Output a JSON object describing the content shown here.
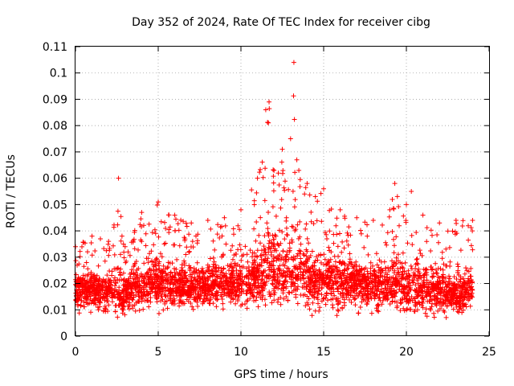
{
  "chart_data": {
    "type": "scatter",
    "title": "Day 352 of 2024, Rate Of TEC Index for receiver cibg",
    "xlabel": "GPS time / hours",
    "ylabel": "ROTI / TECUs",
    "xlim": [
      0,
      25
    ],
    "ylim": [
      0,
      0.11
    ],
    "xticks": [
      "0",
      "5",
      "10",
      "15",
      "20",
      "25"
    ],
    "yticks": [
      "0",
      "0.01",
      "0.02",
      "0.03",
      "0.04",
      "0.05",
      "0.06",
      "0.07",
      "0.08",
      "0.09",
      "0.1",
      "0.11"
    ],
    "grid": true,
    "marker": "+",
    "color": "#ff0000",
    "series": [
      {
        "x": [
          0.0,
          1.0,
          2.0,
          2.6,
          2.9,
          3.0,
          4.0,
          5.0,
          6.0,
          7.0,
          8.0,
          9.0,
          10.0,
          11.0,
          11.5,
          11.7,
          12.0,
          12.5,
          13.0,
          13.2,
          13.5,
          14.0,
          14.5,
          15.0,
          16.0,
          17.0,
          18.0,
          19.0,
          19.3,
          20.0,
          20.3,
          21.0,
          22.0,
          23.0,
          24.0
        ],
        "y_median": [
          0.018,
          0.018,
          0.017,
          0.016,
          0.012,
          0.018,
          0.019,
          0.02,
          0.019,
          0.018,
          0.019,
          0.02,
          0.021,
          0.021,
          0.025,
          0.028,
          0.024,
          0.023,
          0.025,
          0.026,
          0.023,
          0.022,
          0.021,
          0.022,
          0.021,
          0.02,
          0.019,
          0.02,
          0.019,
          0.018,
          0.018,
          0.018,
          0.017,
          0.016,
          0.017
        ],
        "y_min": [
          0.008,
          0.008,
          0.006,
          0.005,
          0.005,
          0.007,
          0.007,
          0.008,
          0.007,
          0.007,
          0.007,
          0.008,
          0.008,
          0.008,
          0.008,
          0.009,
          0.007,
          0.006,
          0.007,
          0.008,
          0.007,
          0.007,
          0.007,
          0.008,
          0.007,
          0.007,
          0.007,
          0.008,
          0.007,
          0.006,
          0.006,
          0.006,
          0.006,
          0.006,
          0.007
        ],
        "y_max": [
          0.034,
          0.038,
          0.036,
          0.06,
          0.035,
          0.034,
          0.047,
          0.051,
          0.046,
          0.043,
          0.044,
          0.045,
          0.048,
          0.06,
          0.086,
          0.089,
          0.063,
          0.071,
          0.075,
          0.104,
          0.063,
          0.058,
          0.053,
          0.056,
          0.048,
          0.045,
          0.044,
          0.048,
          0.058,
          0.05,
          0.055,
          0.046,
          0.043,
          0.044,
          0.044
        ]
      }
    ]
  }
}
